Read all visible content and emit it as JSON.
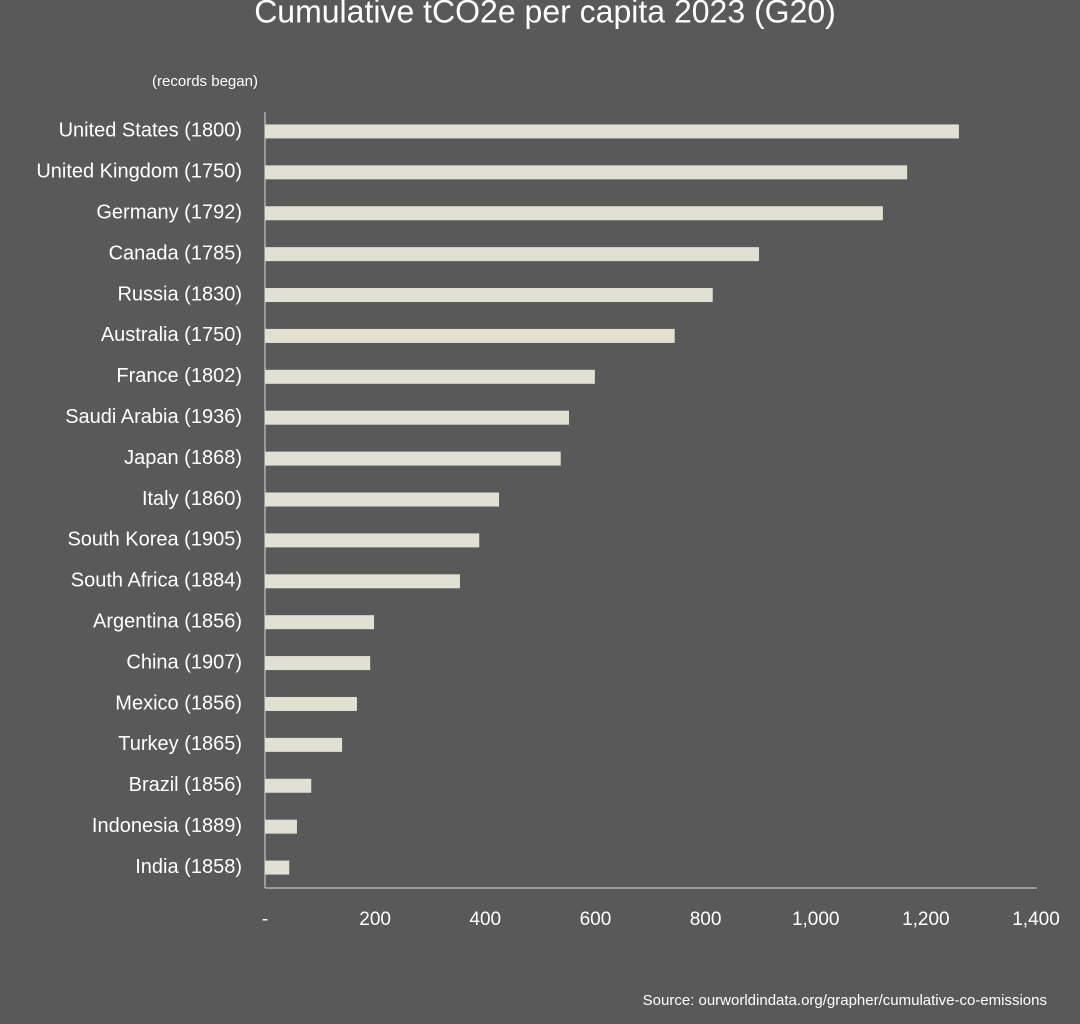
{
  "chart_data": {
    "type": "hbar",
    "title": "Cumulative tCO2e per capita 2023 (G20)",
    "subtitle": "(records began)",
    "source": "Source: ourworldindata.org/grapher/cumulative-co-emissions",
    "categories": [
      "United States (1800)",
      "United Kingdom (1750)",
      "Germany (1792)",
      "Canada (1785)",
      "Russia (1830)",
      "Australia (1750)",
      "France (1802)",
      "Saudi Arabia (1936)",
      "Japan (1868)",
      "Italy (1860)",
      "South Korea (1905)",
      "South Africa (1884)",
      "Argentina (1856)",
      "China (1907)",
      "Mexico (1856)",
      "Turkey (1865)",
      "Brazil (1856)",
      "Indonesia (1889)",
      "India (1858)"
    ],
    "values": [
      1260,
      1166,
      1122,
      897,
      813,
      744,
      599,
      552,
      537,
      425,
      389,
      354,
      198,
      191,
      167,
      140,
      84,
      58,
      44
    ],
    "color": "#e0e1d2",
    "xlim": [
      0,
      1400
    ],
    "xticks": [
      {
        "value": 0,
        "label": "-"
      },
      200,
      400,
      600,
      800,
      {
        "value": 1000,
        "label": "1,000"
      },
      {
        "value": 1200,
        "label": "1,200"
      },
      {
        "value": 1400,
        "label": "1,400"
      }
    ],
    "grid": false
  }
}
